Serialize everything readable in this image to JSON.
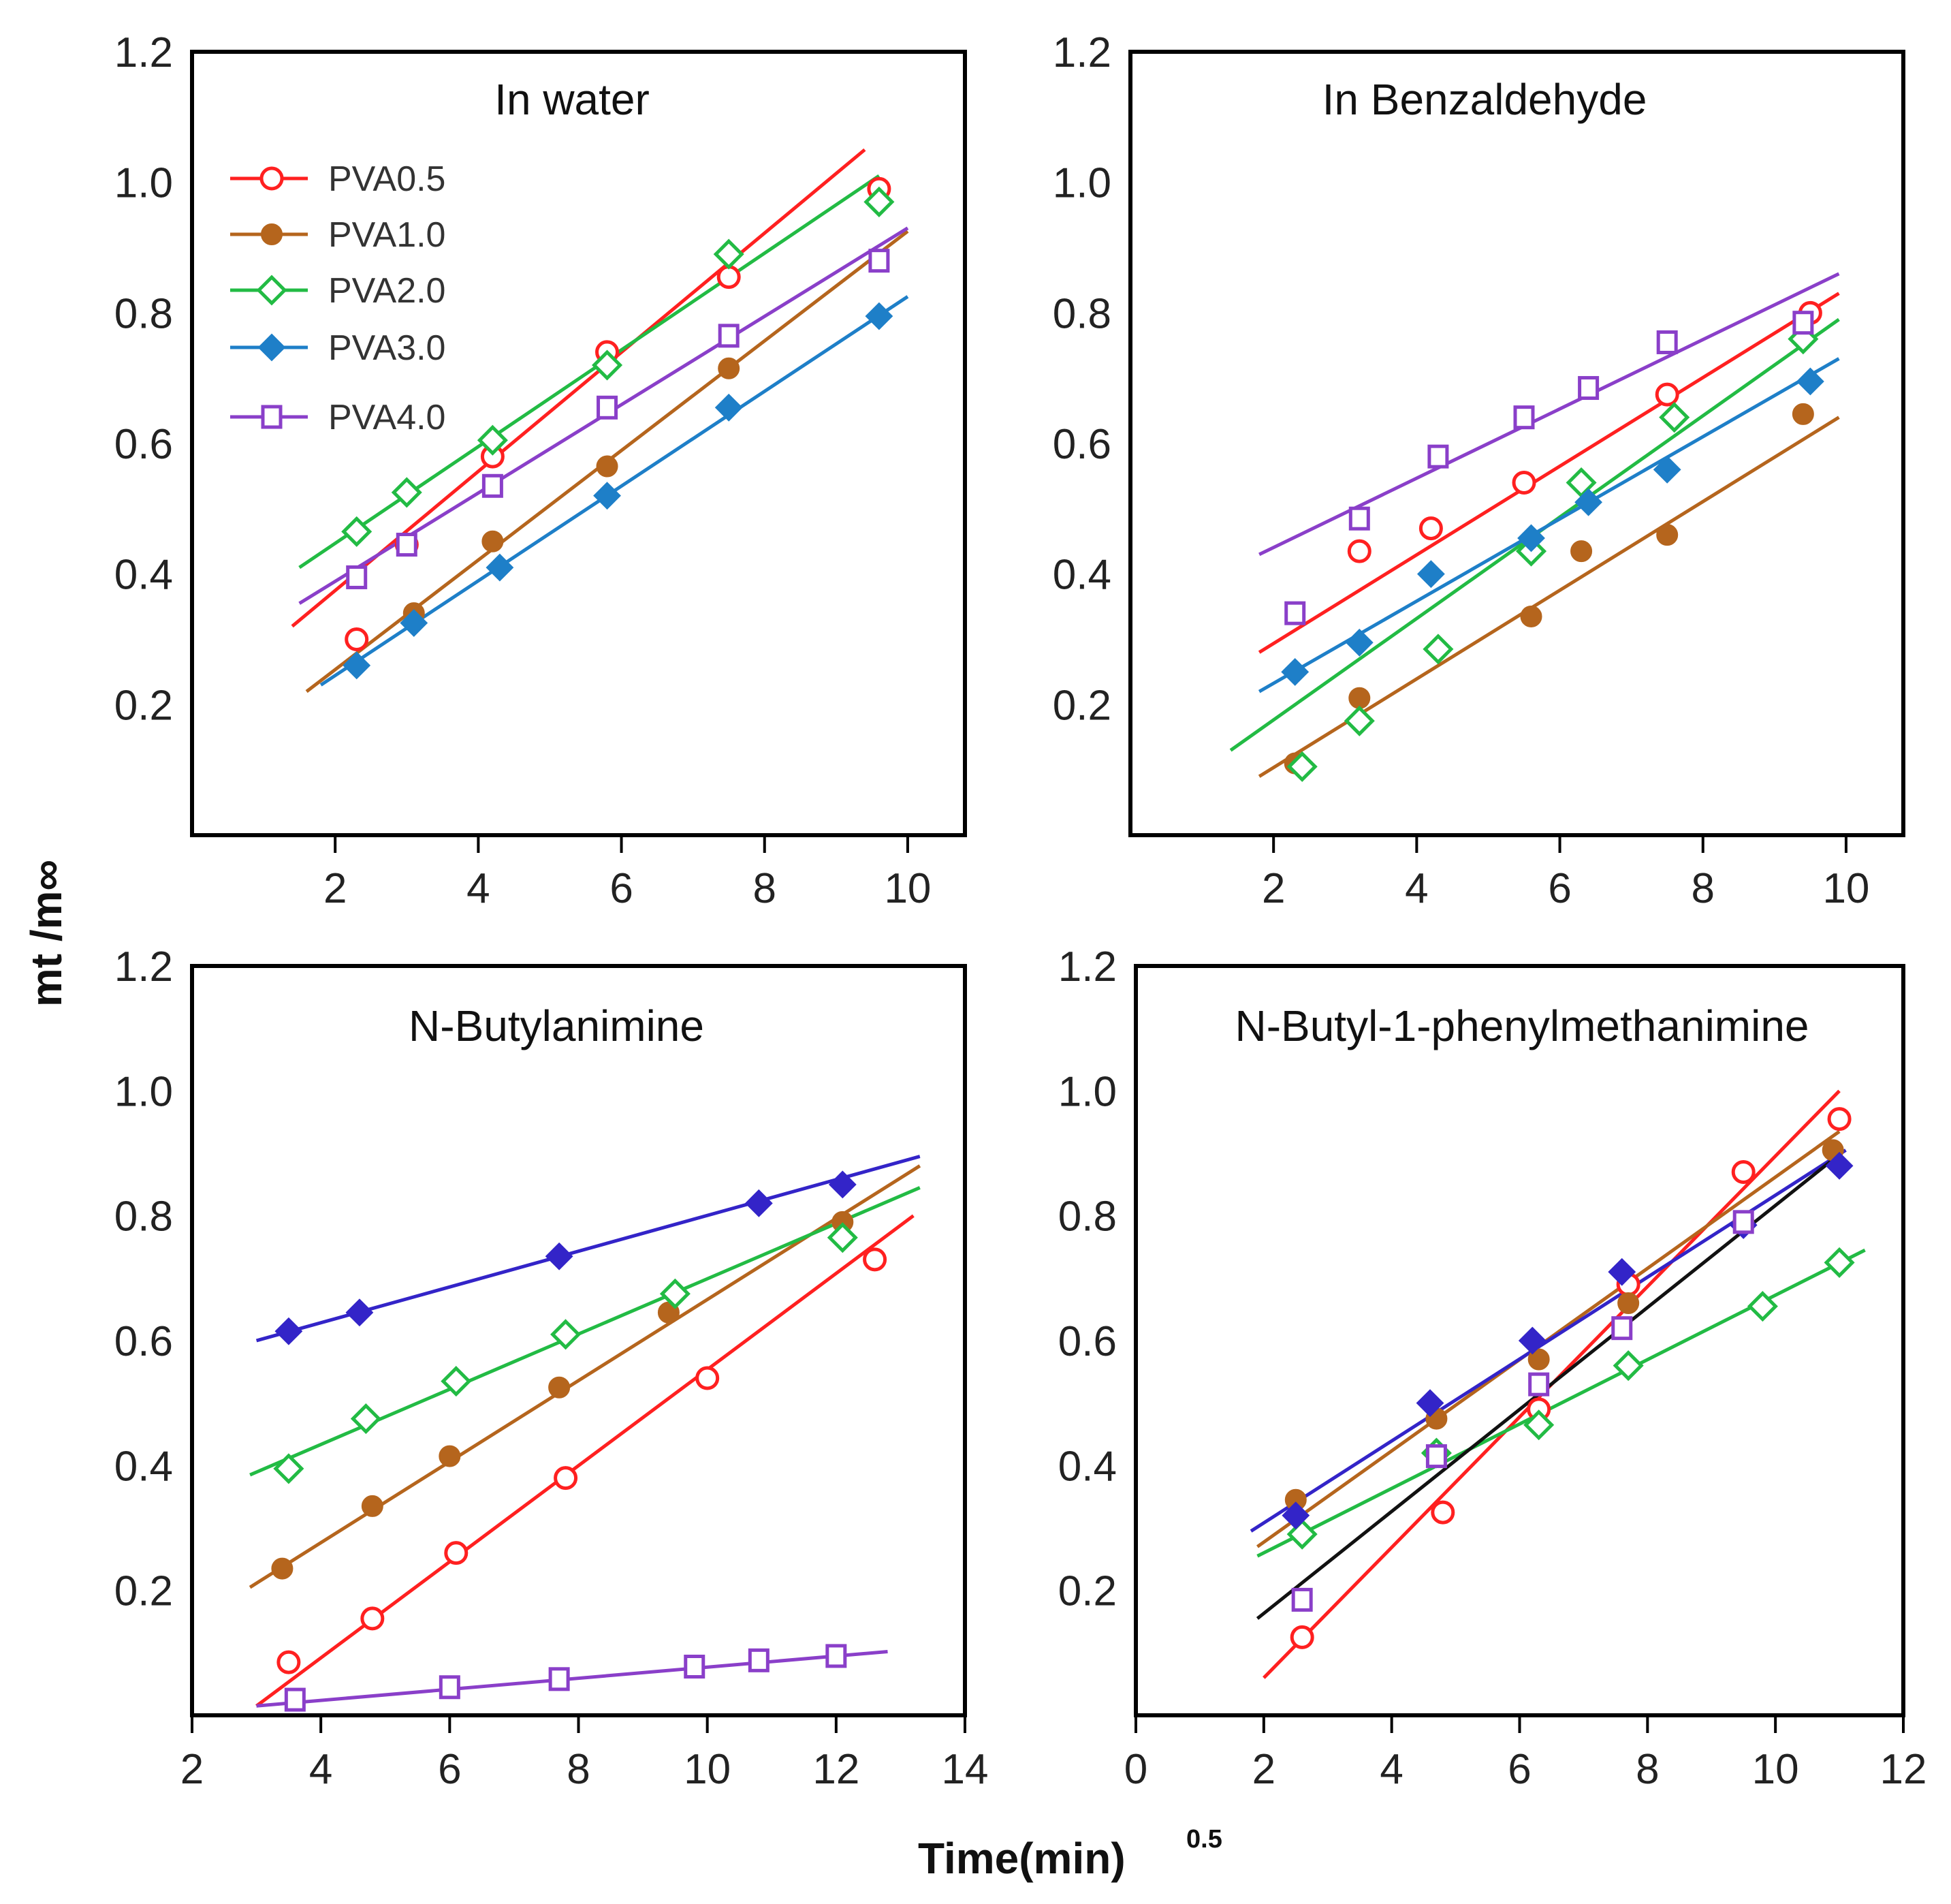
{
  "colors": {
    "pva05": "#ff2020",
    "pva10": "#b5651d",
    "pva20": "#22bb44",
    "pva30": "#1e7fc8",
    "pva30_alt": "#3324c8",
    "pva40": "#8a3fc9",
    "fit_extra": "#111111"
  },
  "axes": {
    "ylabel": "mt /m∞",
    "xlabel_main": "Time(min)",
    "xlabel_sup": "0.5"
  },
  "chart_data": [
    {
      "type": "scatter",
      "title": "In water",
      "xlim": [
        0,
        10.8
      ],
      "ylim": [
        0,
        1.2
      ],
      "xticks": [
        2,
        4,
        6,
        8,
        10
      ],
      "yticks": [
        0.2,
        0.4,
        0.6,
        0.8,
        1.0,
        1.2
      ],
      "yticklabels": [
        "0.2",
        "0.4",
        "0.6",
        "0.8",
        "1.0",
        "1.2"
      ],
      "legend": "top-left",
      "series": [
        {
          "name": "PVA0.5",
          "marker": "circle-open",
          "color": "pva05",
          "points": [
            [
              2.3,
              0.3
            ],
            [
              3.0,
              0.445
            ],
            [
              4.2,
              0.58
            ],
            [
              5.8,
              0.74
            ],
            [
              7.5,
              0.855
            ],
            [
              9.6,
              0.99
            ]
          ],
          "fit": [
            [
              1.4,
              0.32
            ],
            [
              9.4,
              1.05
            ]
          ]
        },
        {
          "name": "PVA1.0",
          "marker": "circle-filled",
          "color": "pva10",
          "points": [
            [
              3.1,
              0.34
            ],
            [
              4.2,
              0.45
            ],
            [
              5.8,
              0.565
            ],
            [
              7.5,
              0.715
            ]
          ],
          "fit": [
            [
              1.6,
              0.22
            ],
            [
              10.0,
              0.925
            ]
          ]
        },
        {
          "name": "PVA2.0",
          "marker": "diamond-open",
          "color": "pva20",
          "points": [
            [
              2.3,
              0.465
            ],
            [
              3.0,
              0.525
            ],
            [
              4.2,
              0.605
            ],
            [
              5.8,
              0.72
            ],
            [
              7.5,
              0.89
            ],
            [
              9.6,
              0.97
            ]
          ],
          "fit": [
            [
              1.5,
              0.41
            ],
            [
              9.6,
              1.01
            ]
          ]
        },
        {
          "name": "PVA3.0",
          "marker": "diamond-filled",
          "color": "pva30",
          "points": [
            [
              2.3,
              0.26
            ],
            [
              3.1,
              0.325
            ],
            [
              4.3,
              0.41
            ],
            [
              5.8,
              0.52
            ],
            [
              7.5,
              0.655
            ],
            [
              9.6,
              0.795
            ]
          ],
          "fit": [
            [
              1.8,
              0.23
            ],
            [
              10.0,
              0.825
            ]
          ]
        },
        {
          "name": "PVA4.0",
          "marker": "square-open",
          "color": "pva40",
          "points": [
            [
              2.3,
              0.395
            ],
            [
              3.0,
              0.445
            ],
            [
              4.2,
              0.535
            ],
            [
              5.8,
              0.655
            ],
            [
              7.5,
              0.765
            ],
            [
              9.6,
              0.88
            ]
          ],
          "fit": [
            [
              1.5,
              0.355
            ],
            [
              10.0,
              0.93
            ]
          ]
        }
      ]
    },
    {
      "type": "scatter",
      "title": "In Benzaldehyde",
      "xlim": [
        0,
        10.8
      ],
      "ylim": [
        0,
        1.2
      ],
      "xticks": [
        2,
        4,
        6,
        8,
        10
      ],
      "yticks": [
        0.2,
        0.4,
        0.6,
        0.8,
        1.0,
        1.2
      ],
      "yticklabels": [
        "0.2",
        "0.4",
        "0.6",
        "0.8",
        "1.0",
        "1.2"
      ],
      "series": [
        {
          "name": "PVA0.5",
          "marker": "circle-open",
          "color": "pva05",
          "points": [
            [
              3.2,
              0.435
            ],
            [
              4.2,
              0.47
            ],
            [
              5.5,
              0.54
            ],
            [
              7.5,
              0.675
            ],
            [
              9.5,
              0.8
            ]
          ],
          "fit": [
            [
              1.8,
              0.28
            ],
            [
              9.9,
              0.83
            ]
          ]
        },
        {
          "name": "PVA1.0",
          "marker": "circle-filled",
          "color": "pva10",
          "points": [
            [
              2.3,
              0.11
            ],
            [
              3.2,
              0.21
            ],
            [
              5.6,
              0.335
            ],
            [
              6.3,
              0.435
            ],
            [
              7.5,
              0.46
            ],
            [
              9.4,
              0.645
            ]
          ],
          "fit": [
            [
              1.8,
              0.09
            ],
            [
              9.9,
              0.64
            ]
          ]
        },
        {
          "name": "PVA2.0",
          "marker": "diamond-open",
          "color": "pva20",
          "points": [
            [
              2.4,
              0.105
            ],
            [
              3.2,
              0.175
            ],
            [
              4.3,
              0.285
            ],
            [
              5.6,
              0.435
            ],
            [
              6.3,
              0.54
            ],
            [
              7.6,
              0.64
            ],
            [
              9.4,
              0.76
            ]
          ],
          "fit": [
            [
              1.4,
              0.13
            ],
            [
              9.9,
              0.79
            ]
          ]
        },
        {
          "name": "PVA3.0",
          "marker": "diamond-filled",
          "color": "pva30",
          "points": [
            [
              2.3,
              0.25
            ],
            [
              3.2,
              0.295
            ],
            [
              4.2,
              0.4
            ],
            [
              5.6,
              0.455
            ],
            [
              6.4,
              0.51
            ],
            [
              7.5,
              0.56
            ],
            [
              9.5,
              0.695
            ]
          ],
          "fit": [
            [
              1.8,
              0.22
            ],
            [
              9.9,
              0.73
            ]
          ]
        },
        {
          "name": "PVA4.0",
          "marker": "square-open",
          "color": "pva40",
          "points": [
            [
              2.3,
              0.34
            ],
            [
              3.2,
              0.485
            ],
            [
              4.3,
              0.58
            ],
            [
              5.5,
              0.64
            ],
            [
              6.4,
              0.685
            ],
            [
              7.5,
              0.755
            ],
            [
              9.4,
              0.785
            ]
          ],
          "fit": [
            [
              1.8,
              0.43
            ],
            [
              9.9,
              0.86
            ]
          ]
        }
      ]
    },
    {
      "type": "scatter",
      "title": "N-Butylanimine",
      "xlim": [
        2,
        14
      ],
      "ylim": [
        0,
        1.2
      ],
      "xticks": [
        2,
        4,
        6,
        8,
        10,
        12,
        14
      ],
      "yticks": [
        0.2,
        0.4,
        0.6,
        0.8,
        1.0,
        1.2
      ],
      "yticklabels": [
        "0.2",
        "0.4",
        "0.6",
        "0.8",
        "1.0",
        "1.2"
      ],
      "series": [
        {
          "name": "PVA0.5",
          "marker": "circle-open",
          "color": "pva05",
          "points": [
            [
              3.5,
              0.085
            ],
            [
              4.8,
              0.155
            ],
            [
              6.1,
              0.26
            ],
            [
              7.8,
              0.38
            ],
            [
              10.0,
              0.54
            ],
            [
              12.6,
              0.73
            ]
          ],
          "fit": [
            [
              3.0,
              0.015
            ],
            [
              13.2,
              0.8
            ]
          ]
        },
        {
          "name": "PVA1.0",
          "marker": "circle-filled",
          "color": "pva10",
          "points": [
            [
              3.4,
              0.235
            ],
            [
              4.8,
              0.335
            ],
            [
              6.0,
              0.415
            ],
            [
              7.7,
              0.525
            ],
            [
              9.4,
              0.645
            ],
            [
              12.1,
              0.79
            ]
          ],
          "fit": [
            [
              2.9,
              0.205
            ],
            [
              13.3,
              0.88
            ]
          ]
        },
        {
          "name": "PVA2.0",
          "marker": "diamond-open",
          "color": "pva20",
          "points": [
            [
              3.5,
              0.395
            ],
            [
              4.7,
              0.475
            ],
            [
              6.1,
              0.535
            ],
            [
              7.8,
              0.61
            ],
            [
              9.5,
              0.675
            ],
            [
              12.1,
              0.765
            ]
          ],
          "fit": [
            [
              2.9,
              0.385
            ],
            [
              13.3,
              0.845
            ]
          ]
        },
        {
          "name": "PVA3.0",
          "marker": "diamond-filled",
          "color": "pva30_alt",
          "points": [
            [
              3.5,
              0.615
            ],
            [
              4.6,
              0.645
            ],
            [
              7.7,
              0.735
            ],
            [
              10.8,
              0.82
            ],
            [
              12.1,
              0.85
            ]
          ],
          "fit": [
            [
              3.0,
              0.6
            ],
            [
              13.3,
              0.895
            ]
          ]
        },
        {
          "name": "PVA4.0",
          "marker": "square-open",
          "color": "pva40",
          "points": [
            [
              3.6,
              0.025
            ],
            [
              6.0,
              0.045
            ],
            [
              7.7,
              0.058
            ],
            [
              9.8,
              0.078
            ],
            [
              10.8,
              0.088
            ],
            [
              12.0,
              0.095
            ]
          ],
          "fit": [
            [
              3.0,
              0.015
            ],
            [
              12.8,
              0.102
            ]
          ]
        }
      ]
    },
    {
      "type": "scatter",
      "title": "N-Butyl-1-phenylmethanimine",
      "xlim": [
        0,
        12
      ],
      "ylim": [
        0,
        1.2
      ],
      "xticks": [
        0,
        2,
        4,
        6,
        8,
        10,
        12
      ],
      "yticks": [
        0.2,
        0.4,
        0.6,
        0.8,
        1.0,
        1.2
      ],
      "yticklabels": [
        "0.2",
        "0.4",
        "0.6",
        "0.8",
        "1.0",
        "1.2"
      ],
      "series": [
        {
          "name": "PVA0.5",
          "marker": "circle-open",
          "color": "pva05",
          "points": [
            [
              2.6,
              0.125
            ],
            [
              4.8,
              0.325
            ],
            [
              6.3,
              0.49
            ],
            [
              7.7,
              0.69
            ],
            [
              9.5,
              0.87
            ],
            [
              11.0,
              0.955
            ]
          ],
          "fit": [
            [
              2.0,
              0.06
            ],
            [
              11.0,
              1.0
            ]
          ]
        },
        {
          "name": "PVA1.0",
          "marker": "circle-filled",
          "color": "pva10",
          "points": [
            [
              2.5,
              0.345
            ],
            [
              4.7,
              0.475
            ],
            [
              6.3,
              0.57
            ],
            [
              7.7,
              0.66
            ],
            [
              9.5,
              0.79
            ],
            [
              10.9,
              0.905
            ]
          ],
          "fit": [
            [
              1.9,
              0.27
            ],
            [
              11.0,
              0.935
            ]
          ]
        },
        {
          "name": "PVA2.0",
          "marker": "diamond-open",
          "color": "pva20",
          "points": [
            [
              2.6,
              0.29
            ],
            [
              4.7,
              0.42
            ],
            [
              6.3,
              0.465
            ],
            [
              7.7,
              0.56
            ],
            [
              9.8,
              0.655
            ],
            [
              11.0,
              0.725
            ]
          ],
          "fit": [
            [
              1.9,
              0.255
            ],
            [
              11.4,
              0.745
            ]
          ]
        },
        {
          "name": "PVA3.0",
          "marker": "diamond-filled",
          "color": "pva30_alt",
          "points": [
            [
              2.5,
              0.32
            ],
            [
              4.6,
              0.5
            ],
            [
              6.2,
              0.6
            ],
            [
              7.6,
              0.71
            ],
            [
              9.5,
              0.785
            ],
            [
              11.0,
              0.88
            ]
          ],
          "fit": [
            [
              1.8,
              0.295
            ],
            [
              11.1,
              0.905
            ]
          ]
        },
        {
          "name": "PVA4.0",
          "marker": "square-open",
          "color": "pva40",
          "points": [
            [
              2.6,
              0.185
            ],
            [
              4.7,
              0.415
            ],
            [
              6.3,
              0.53
            ],
            [
              7.6,
              0.62
            ],
            [
              9.5,
              0.79
            ]
          ],
          "fit": [
            [
              1.9,
              0.155
            ],
            [
              10.9,
              0.89
            ]
          ],
          "fit_color": "fit_extra"
        }
      ]
    }
  ]
}
